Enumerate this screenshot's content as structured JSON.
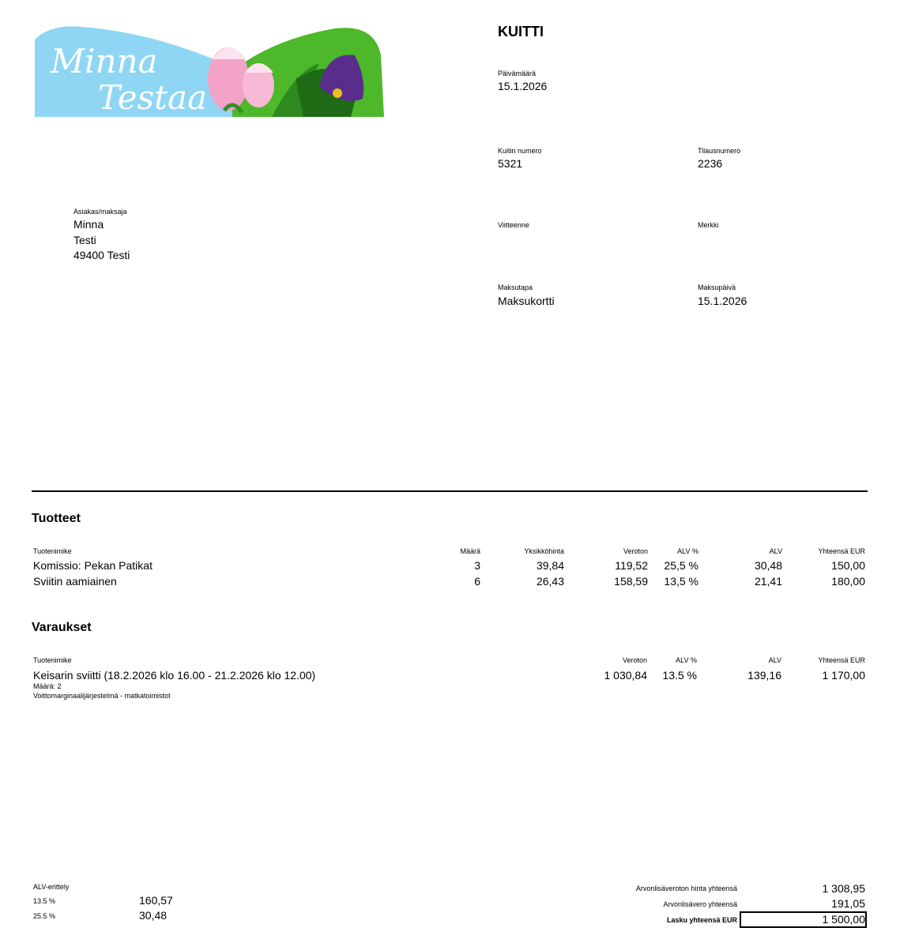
{
  "logo": {
    "text_line1": "Minna",
    "text_line2": "Testaa"
  },
  "receipt": {
    "title": "KUITTI",
    "date_label": "Päivämäärä",
    "date": "15.1.2026",
    "receipt_number_label": "Kuitin numero",
    "receipt_number": "5321",
    "order_number_label": "Tilausnumero",
    "order_number": "2236",
    "your_reference_label": "Viitteenne",
    "mark_label": "Merkki",
    "payment_method_label": "Maksutapa",
    "payment_method": "Maksukortti",
    "payment_date_label": "Maksupäivä",
    "payment_date": "15.1.2026"
  },
  "customer": {
    "label": "Asiakas/maksaja",
    "name": "Minna",
    "line2": "Testi",
    "address": "49400 Testi"
  },
  "products": {
    "title": "Tuotteet",
    "headers": {
      "name": "Tuotenimike",
      "qty": "Määrä",
      "unit_price": "Yksikköhinta",
      "net": "Veroton",
      "vat_pct": "ALV %",
      "vat": "ALV",
      "total": "Yhteensä EUR"
    },
    "rows": [
      {
        "name": "Komissio: Pekan Patikat",
        "qty": "3",
        "unit_price": "39,84",
        "net": "119,52",
        "vat_pct": "25,5 %",
        "vat": "30,48",
        "total": "150,00"
      },
      {
        "name": "Sviitin aamiainen",
        "qty": "6",
        "unit_price": "26,43",
        "net": "158,59",
        "vat_pct": "13,5 %",
        "vat": "21,41",
        "total": "180,00"
      }
    ]
  },
  "reservations": {
    "title": "Varaukset",
    "headers": {
      "name": "Tuotenimike",
      "net": "Veroton",
      "vat_pct": "ALV %",
      "vat": "ALV",
      "total": "Yhteensä EUR"
    },
    "rows": [
      {
        "name": "Keisarin sviitti (18.2.2026 klo 16.00 - 21.2.2026 klo 12.00)",
        "qty_note": "Määrä: 2",
        "scheme_note": "Voittomarginaalijärjestelmä - matkatoimistot",
        "net": "1 030,84",
        "vat_pct": "13.5 %",
        "vat": "139,16",
        "total": "1 170,00"
      }
    ]
  },
  "vat_breakdown": {
    "label": "ALV-erittely",
    "rows": [
      {
        "rate": "13.5 %",
        "amount": "160,57"
      },
      {
        "rate": "25.5 %",
        "amount": "30,48"
      }
    ]
  },
  "totals": {
    "net_label": "Arvonlisäveroton hinta yhteensä",
    "net": "1 308,95",
    "vat_label": "Arvonlisävero yhteensä",
    "vat": "191,05",
    "total_label": "Lasku yhteensä EUR",
    "total": "1 500,00"
  }
}
